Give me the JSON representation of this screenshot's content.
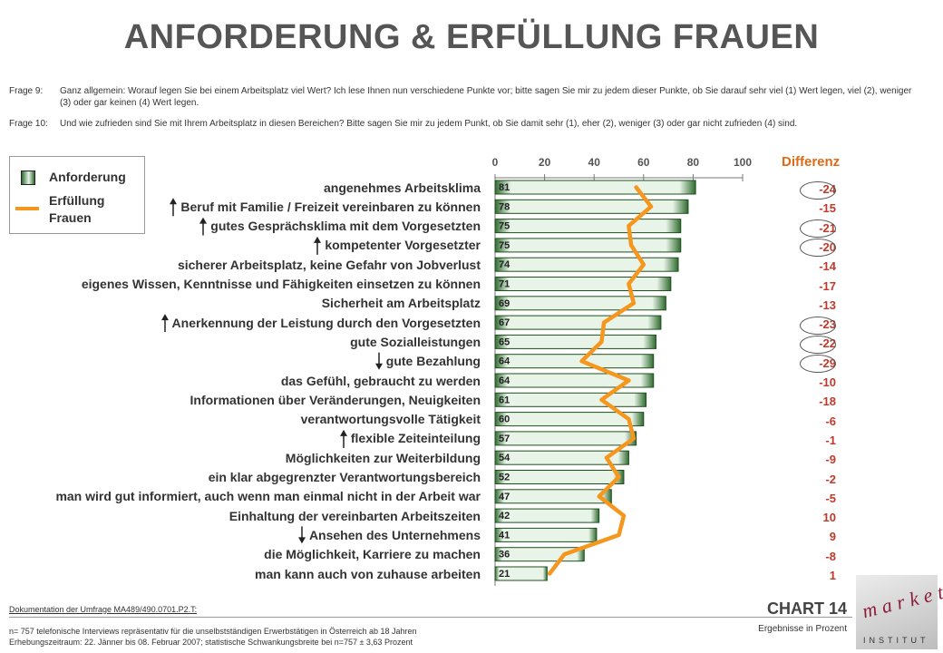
{
  "title": "ANFORDERUNG & ERFÜLLUNG FRAUEN",
  "questions": [
    {
      "label": "Frage 9:",
      "text": "Ganz allgemein: Worauf legen Sie bei einem Arbeitsplatz viel Wert? Ich lese Ihnen nun verschiedene Punkte vor; bitte sagen Sie mir zu jedem dieser Punkte, ob Sie darauf sehr viel (1) Wert legen, viel (2), weniger (3) oder gar keinen (4) Wert legen."
    },
    {
      "label": "Frage 10:",
      "text": "Und wie zufrieden sind Sie mit Ihrem Arbeitsplatz in diesen Bereichen? Bitte sagen Sie mir zu jedem Punkt, ob Sie damit sehr (1), eher (2), weniger (3) oder gar nicht zufrieden (4) sind."
    }
  ],
  "legend": {
    "bar_label": "Anforderung",
    "line_label": "Erfüllung Frauen"
  },
  "diff_header": "Differenz",
  "chart_data": {
    "type": "bar",
    "orientation": "horizontal",
    "xlim": [
      0,
      100
    ],
    "ticks": [
      "0",
      "20",
      "40",
      "60",
      "80",
      "100"
    ],
    "categories": [
      "angenehmes Arbeitsklima",
      "Beruf mit Familie / Freizeit vereinbaren zu können",
      "gutes Gesprächsklima mit dem Vorgesetzten",
      "kompetenter Vorgesetzter",
      "sicherer Arbeitsplatz, keine Gefahr von Jobverlust",
      "eigenes Wissen, Kenntnisse und Fähigkeiten einsetzen zu können",
      "Sicherheit am Arbeitsplatz",
      "Anerkennung der Leistung durch den Vorgesetzten",
      "gute Sozialleistungen",
      "gute Bezahlung",
      "das Gefühl, gebraucht zu werden",
      "Informationen über Veränderungen, Neuigkeiten",
      "verantwortungsvolle Tätigkeit",
      "flexible Zeiteinteilung",
      "Möglichkeiten zur Weiterbildung",
      "ein klar abgegrenzter Verantwortungsbereich",
      "man wird gut informiert, auch wenn man einmal nicht in der Arbeit war",
      "Einhaltung der vereinbarten Arbeitszeiten",
      "Ansehen des Unternehmens",
      "die Möglichkeit, Karriere zu machen",
      "man kann auch von zuhause arbeiten"
    ],
    "series": [
      {
        "name": "Anforderung",
        "values": [
          81,
          78,
          75,
          75,
          74,
          71,
          69,
          67,
          65,
          64,
          64,
          61,
          60,
          57,
          54,
          52,
          47,
          42,
          41,
          36,
          21
        ]
      },
      {
        "name": "Erfüllung Frauen",
        "values": [
          57,
          63,
          54,
          55,
          60,
          54,
          56,
          44,
          43,
          35,
          54,
          43,
          54,
          56,
          45,
          50,
          42,
          52,
          50,
          28,
          22
        ]
      }
    ],
    "differenz": [
      "-24",
      "-15",
      "-21",
      "-20",
      "-14",
      "-17",
      "-13",
      "-23",
      "-22",
      "-29",
      "-10",
      "-18",
      "-6",
      "-1",
      "-9",
      "-2",
      "-5",
      "10",
      "9",
      "-8",
      "1"
    ],
    "circled": [
      true,
      false,
      true,
      true,
      false,
      false,
      false,
      true,
      true,
      true,
      false,
      false,
      false,
      false,
      false,
      false,
      false,
      false,
      false,
      false,
      false
    ],
    "arrows": [
      "",
      "up",
      "up",
      "up",
      "",
      "",
      "",
      "up",
      "",
      "down",
      "",
      "",
      "",
      "up",
      "",
      "",
      "",
      "",
      "down",
      "",
      ""
    ],
    "colors": {
      "bar": "#2f6b2f",
      "line": "#f5971f",
      "diff": "#c0392b"
    }
  },
  "footer": {
    "link": "Dokumentation der Umfrage MA489/490.0701.P2.T:",
    "line1": "n= 757  telefonische Interviews repräsentativ für die unselbstständigen Erwerbstätigen in Österreich ab 18 Jahren",
    "line2": "Erhebungszeitraum: 22. Jänner bis 08. Februar 2007; statistische Schwankungsbreite bei n=757 ± 3,63 Prozent",
    "chart_number": "CHART 14",
    "unit_note": "Ergebnisse in Prozent"
  },
  "logo": {
    "word": "market",
    "sub": "INSTITUT"
  }
}
